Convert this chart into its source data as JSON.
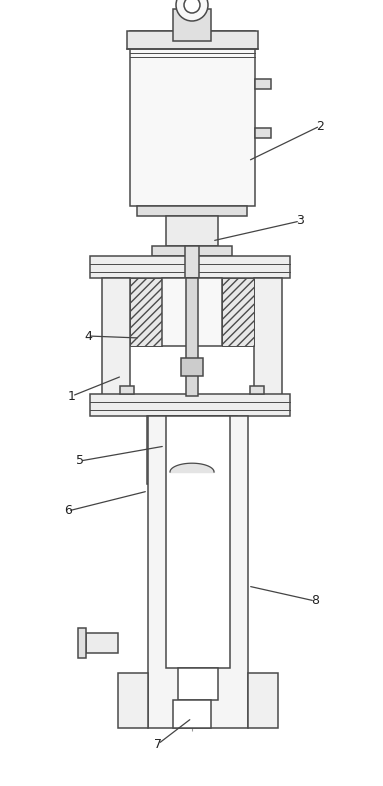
{
  "fig_width": 3.83,
  "fig_height": 7.86,
  "dpi": 100,
  "bg_color": "#ffffff",
  "line_color": "#4a4a4a",
  "lw": 1.1
}
